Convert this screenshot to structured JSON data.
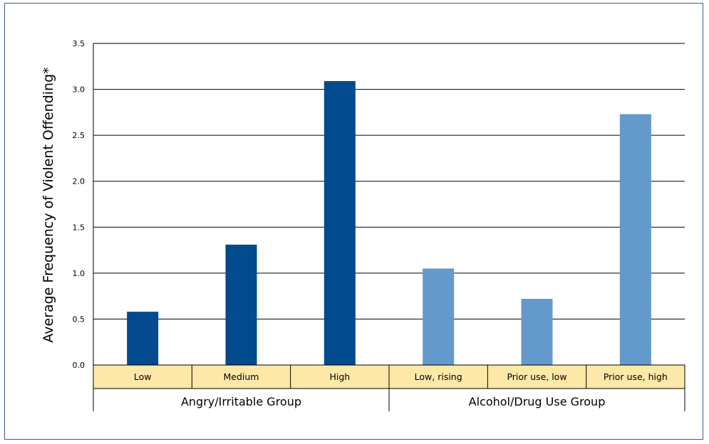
{
  "chart_data": {
    "type": "bar",
    "ylabel": "Average Frequency of Violent Offending*",
    "ylim": [
      0,
      3.5
    ],
    "yticks": [
      "0.0",
      "0.5",
      "1.0",
      "1.5",
      "2.0",
      "2.5",
      "3.0",
      "3.5"
    ],
    "grid": true,
    "categories": [
      "Low",
      "Medium",
      "High",
      "Low, rising",
      "Prior use, low",
      "Prior use, high"
    ],
    "values": [
      0.58,
      1.31,
      3.09,
      1.05,
      0.72,
      2.73
    ],
    "groups": [
      {
        "name": "Angry/Irritable Group",
        "categories": [
          "Low",
          "Medium",
          "High"
        ],
        "color": "#004a8d"
      },
      {
        "name": "Alcohol/Drug Use Group",
        "categories": [
          "Low, rising",
          "Prior use, low",
          "Prior use, high"
        ],
        "color": "#6499cb"
      }
    ],
    "colors": {
      "category_band": "#fde8a8",
      "gridline": "#000000"
    }
  }
}
